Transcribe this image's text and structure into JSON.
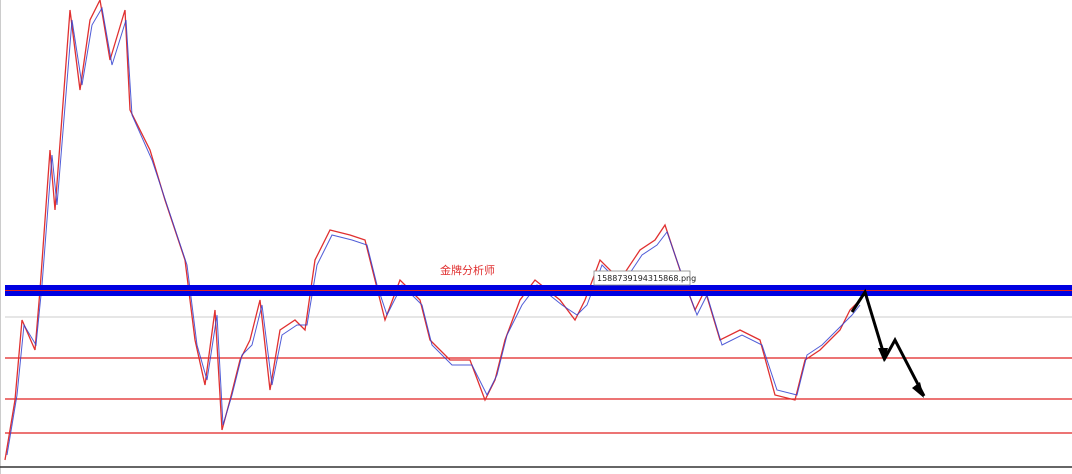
{
  "watermark": "金牌分析师",
  "tooltip": "1588739194315868.png"
}
